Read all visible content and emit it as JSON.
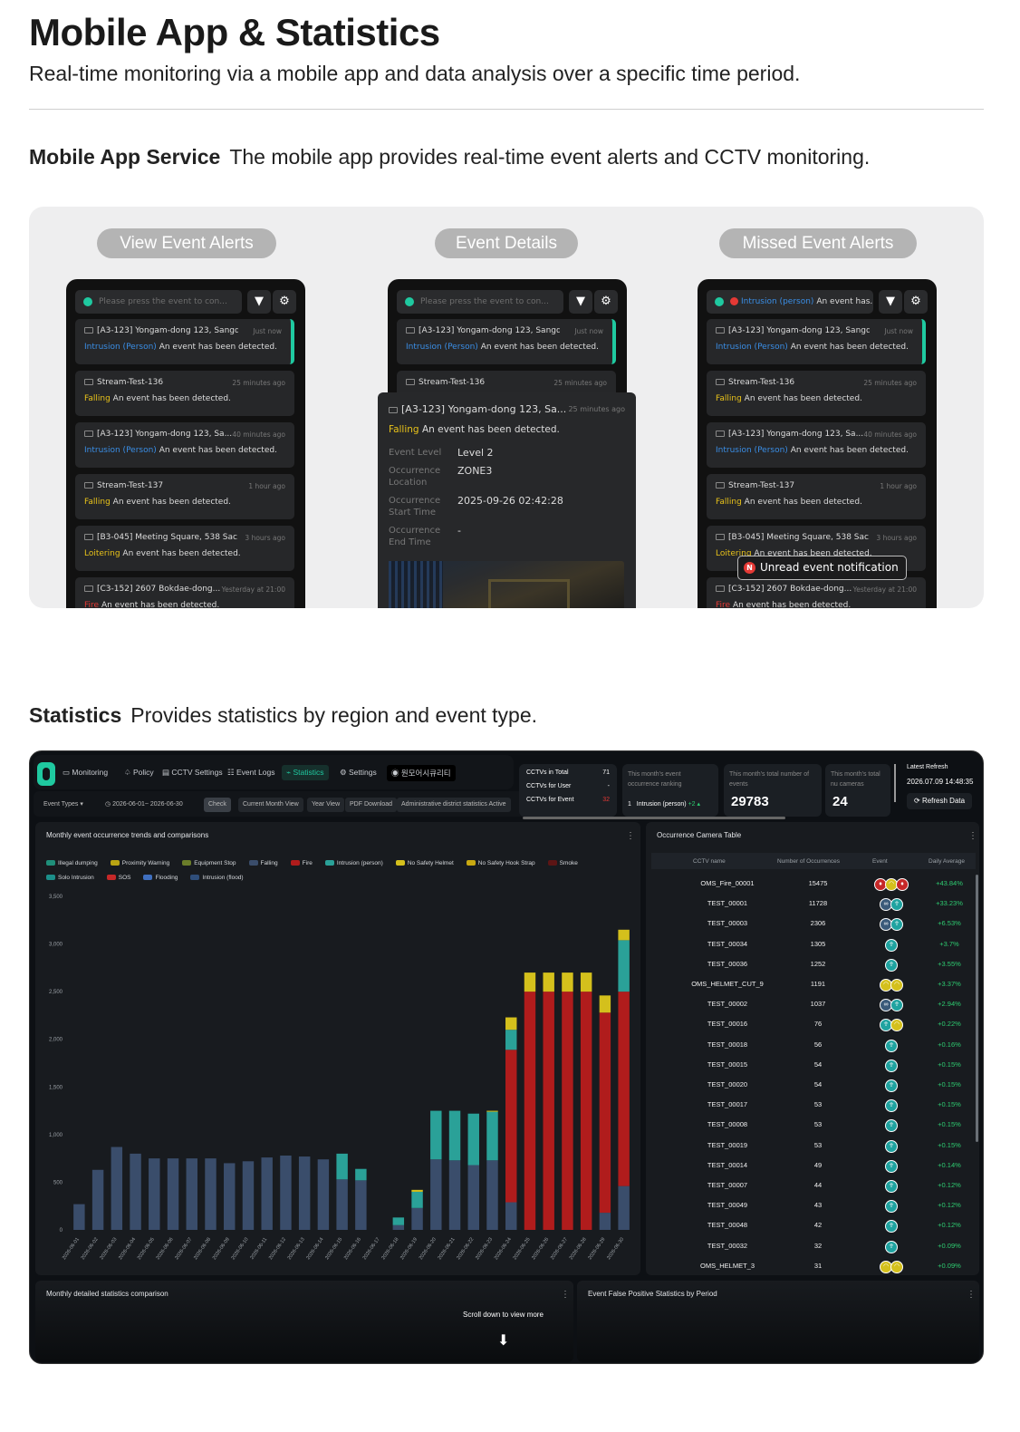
{
  "header": {
    "title": "Mobile App & Statistics",
    "subtitle": "Real-time monitoring via a mobile app and data analysis over a specific time period."
  },
  "mobile_section": {
    "label": "Mobile App Service",
    "desc": "The mobile app provides real-time event alerts and CCTV monitoring.",
    "pills": [
      "View Event Alerts",
      "Event Details",
      "Missed Event Alerts"
    ],
    "search_placeholder": "Please press the event to con...",
    "missed_search_type": "Intrusion (person)",
    "missed_search_rest": "An event has...",
    "events": [
      {
        "title": "[A3-123] Yongam-dong 123, Sangd...",
        "time": "Just now",
        "type": "Intrusion (Person)",
        "color": "c",
        "desc": "An event has been detected."
      },
      {
        "title": "Stream-Test-136",
        "time": "25 minutes ago",
        "type": "Falling",
        "color": "y",
        "desc": "An event has been detected."
      },
      {
        "title": "[A3-123] Yongam-dong 123, Sa...",
        "time": "40 minutes ago",
        "type": "Intrusion (Person)",
        "color": "c",
        "desc": "An event has been detected."
      },
      {
        "title": "Stream-Test-137",
        "time": "1 hour ago",
        "type": "Falling",
        "color": "y",
        "desc": "An event has been detected."
      },
      {
        "title": "[B3-045] Meeting Square, 538 Sac...",
        "time": "3 hours ago",
        "type": "Loitering",
        "color": "y",
        "desc": "An event has been detected."
      },
      {
        "title": "[C3-152] 2607 Bokdae-dong...",
        "time": "Yesterday at 21:00",
        "type": "Fire",
        "color": "r",
        "desc": "An event has been detected."
      }
    ],
    "detail": {
      "title": "[A3-123] Yongam-dong 123, Sa...",
      "time": "25 minutes ago",
      "type": "Falling",
      "desc": "An event has been detected.",
      "fields": [
        {
          "label": "Event Level",
          "value": "Level 2"
        },
        {
          "label": "Occurrence Location",
          "value": "ZONE3"
        },
        {
          "label": "Occurrence Start Time",
          "value": "2025-09-26 02:42:28"
        },
        {
          "label": "Occurrence End Time",
          "value": "-"
        }
      ]
    },
    "notification": "Unread event notification"
  },
  "stats_section": {
    "label": "Statistics",
    "desc": "Provides statistics by region and event type."
  },
  "dashboard": {
    "nav": [
      "Monitoring",
      "Policy",
      "CCTV Settings",
      "Event Logs",
      "Statistics",
      "Settings",
      "원모어시큐리티"
    ],
    "filters": [
      "Event Types",
      "2026-06-01~ 2026-06-30",
      "Check",
      "Current Month View",
      "Year View",
      "PDF Download",
      "Administrative district statistics Active"
    ],
    "cctv_summary": [
      {
        "label": "CCTVs in Total",
        "value": "71"
      },
      {
        "label": "CCTVs for User",
        "value": "-"
      },
      {
        "label": "CCTVs for Event",
        "value": "32"
      }
    ],
    "ranking": {
      "label": "This month's event occurrence ranking",
      "rank": "1",
      "name": "Intrusion (person)",
      "delta": "+2"
    },
    "total_events": {
      "label": "This month's total number of events",
      "value": "29783"
    },
    "total_cameras": {
      "label": "This month's total nu cameras",
      "value": "24"
    },
    "refresh": {
      "label": "Latest Refresh",
      "time": "2026.07.09 14:48:35",
      "button": "Refresh Data"
    },
    "chart_title": "Monthly event occurrence trends and comparisons",
    "table_title": "Occurrence Camera Table",
    "table_headers": [
      "CCTV name",
      "Number of Occurrences",
      "Event",
      "Daily Average"
    ],
    "table_rows": [
      {
        "name": "OMS_Fire_00001",
        "count": "15475",
        "avg": "+43.84%",
        "icons": [
          "r",
          "y",
          "r"
        ]
      },
      {
        "name": "TEST_00001",
        "count": "11728",
        "avg": "+33.23%",
        "icons": [
          "b",
          "t"
        ]
      },
      {
        "name": "TEST_00003",
        "count": "2306",
        "avg": "+6.53%",
        "icons": [
          "b",
          "t"
        ]
      },
      {
        "name": "TEST_00034",
        "count": "1305",
        "avg": "+3.7%",
        "icons": [
          "t"
        ]
      },
      {
        "name": "TEST_00036",
        "count": "1252",
        "avg": "+3.55%",
        "icons": [
          "t"
        ]
      },
      {
        "name": "OMS_HELMET_CUT_9",
        "count": "1191",
        "avg": "+3.37%",
        "icons": [
          "y",
          "y"
        ]
      },
      {
        "name": "TEST_00002",
        "count": "1037",
        "avg": "+2.94%",
        "icons": [
          "b",
          "t"
        ]
      },
      {
        "name": "TEST_00016",
        "count": "76",
        "avg": "+0.22%",
        "icons": [
          "t",
          "y"
        ]
      },
      {
        "name": "TEST_00018",
        "count": "56",
        "avg": "+0.16%",
        "icons": [
          "t"
        ]
      },
      {
        "name": "TEST_00015",
        "count": "54",
        "avg": "+0.15%",
        "icons": [
          "t"
        ]
      },
      {
        "name": "TEST_00020",
        "count": "54",
        "avg": "+0.15%",
        "icons": [
          "t"
        ]
      },
      {
        "name": "TEST_00017",
        "count": "53",
        "avg": "+0.15%",
        "icons": [
          "t"
        ]
      },
      {
        "name": "TEST_00008",
        "count": "53",
        "avg": "+0.15%",
        "icons": [
          "t"
        ]
      },
      {
        "name": "TEST_00019",
        "count": "53",
        "avg": "+0.15%",
        "icons": [
          "t"
        ]
      },
      {
        "name": "TEST_00014",
        "count": "49",
        "avg": "+0.14%",
        "icons": [
          "t"
        ]
      },
      {
        "name": "TEST_00007",
        "count": "44",
        "avg": "+0.12%",
        "icons": [
          "t"
        ]
      },
      {
        "name": "TEST_00049",
        "count": "43",
        "avg": "+0.12%",
        "icons": [
          "t"
        ]
      },
      {
        "name": "TEST_00048",
        "count": "42",
        "avg": "+0.12%",
        "icons": [
          "t"
        ]
      },
      {
        "name": "TEST_00032",
        "count": "32",
        "avg": "+0.09%",
        "icons": [
          "t"
        ]
      },
      {
        "name": "OMS_HELMET_3",
        "count": "31",
        "avg": "+0.09%",
        "icons": [
          "y",
          "y"
        ]
      }
    ],
    "bottom_left_title": "Monthly detailed statistics comparison",
    "bottom_right_title": "Event False Positive Statistics by Period",
    "scroll_hint": "Scroll down to view more"
  },
  "chart_data": {
    "type": "bar",
    "stacked": true,
    "title": "Monthly event occurrence trends and comparisons",
    "ylim": [
      0,
      3500
    ],
    "yticks": [
      0,
      500,
      1000,
      1500,
      2000,
      2500,
      3000,
      3500
    ],
    "categories": [
      "2026-06-01",
      "2026-06-02",
      "2026-06-03",
      "2026-06-04",
      "2026-06-05",
      "2026-06-06",
      "2026-06-07",
      "2026-06-08",
      "2026-06-09",
      "2026-06-10",
      "2026-06-11",
      "2026-06-12",
      "2026-06-13",
      "2026-06-14",
      "2026-06-15",
      "2026-06-16",
      "2026-06-17",
      "2026-06-18",
      "2026-06-19",
      "2026-06-20",
      "2026-06-21",
      "2026-06-22",
      "2026-06-23",
      "2026-06-24",
      "2026-06-25",
      "2026-06-26",
      "2026-06-27",
      "2026-06-28",
      "2026-06-29",
      "2026-06-30"
    ],
    "legend_position": "top",
    "series": [
      {
        "name": "Illegal dumping",
        "color": "#1f8f7a",
        "values": [
          0,
          0,
          0,
          0,
          0,
          0,
          0,
          0,
          0,
          0,
          0,
          0,
          0,
          0,
          0,
          0,
          0,
          0,
          0,
          0,
          0,
          0,
          0,
          0,
          0,
          0,
          0,
          0,
          0,
          0
        ]
      },
      {
        "name": "Proximity Warning",
        "color": "#b9a413",
        "values": [
          0,
          0,
          0,
          0,
          0,
          0,
          0,
          0,
          0,
          0,
          0,
          0,
          0,
          0,
          0,
          0,
          0,
          0,
          0,
          0,
          0,
          0,
          0,
          0,
          0,
          0,
          0,
          0,
          0,
          0
        ]
      },
      {
        "name": "Equipment Stop",
        "color": "#6b7d2a",
        "values": [
          0,
          0,
          0,
          0,
          0,
          0,
          0,
          0,
          0,
          0,
          0,
          0,
          0,
          0,
          0,
          0,
          0,
          0,
          0,
          0,
          0,
          0,
          0,
          0,
          0,
          0,
          0,
          0,
          0,
          0
        ]
      },
      {
        "name": "Falling",
        "color": "#3a4d6b",
        "values": [
          270,
          630,
          870,
          800,
          750,
          750,
          750,
          750,
          700,
          720,
          760,
          780,
          770,
          740,
          530,
          520,
          0,
          50,
          230,
          740,
          730,
          680,
          730,
          290,
          0,
          0,
          0,
          0,
          180,
          460
        ]
      },
      {
        "name": "Fire",
        "color": "#b01c1c",
        "values": [
          0,
          0,
          0,
          0,
          0,
          0,
          0,
          0,
          0,
          0,
          0,
          0,
          0,
          0,
          0,
          0,
          0,
          0,
          0,
          0,
          0,
          0,
          0,
          1600,
          2500,
          2500,
          2500,
          2500,
          2100,
          2040
        ]
      },
      {
        "name": "Intrusion (person)",
        "color": "#2aa198",
        "values": [
          0,
          0,
          0,
          0,
          0,
          0,
          0,
          0,
          0,
          0,
          0,
          0,
          0,
          0,
          270,
          120,
          0,
          80,
          170,
          510,
          520,
          540,
          510,
          210,
          0,
          0,
          0,
          0,
          0,
          540
        ]
      },
      {
        "name": "No Safety Helmet",
        "color": "#d4c01c",
        "values": [
          0,
          0,
          0,
          0,
          0,
          0,
          0,
          0,
          0,
          0,
          0,
          0,
          0,
          0,
          0,
          0,
          0,
          0,
          20,
          0,
          0,
          0,
          10,
          130,
          200,
          200,
          200,
          200,
          180,
          110
        ]
      },
      {
        "name": "No Safety Hook Strap",
        "color": "#c9a911",
        "values": [
          0,
          0,
          0,
          0,
          0,
          0,
          0,
          0,
          0,
          0,
          0,
          0,
          0,
          0,
          0,
          0,
          0,
          0,
          0,
          0,
          0,
          0,
          0,
          0,
          0,
          0,
          0,
          0,
          0,
          0
        ]
      },
      {
        "name": "Smoke",
        "color": "#5c1515",
        "values": [
          0,
          0,
          0,
          0,
          0,
          0,
          0,
          0,
          0,
          0,
          0,
          0,
          0,
          0,
          0,
          0,
          0,
          0,
          0,
          0,
          0,
          0,
          0,
          0,
          0,
          0,
          0,
          0,
          0,
          0
        ]
      },
      {
        "name": "Solo Intrusion",
        "color": "#1c8f8a",
        "values": [
          0,
          0,
          0,
          0,
          0,
          0,
          0,
          0,
          0,
          0,
          0,
          0,
          0,
          0,
          0,
          0,
          0,
          0,
          0,
          0,
          0,
          0,
          0,
          0,
          0,
          0,
          0,
          0,
          0,
          0
        ]
      },
      {
        "name": "SOS",
        "color": "#c62828",
        "values": [
          0,
          0,
          0,
          0,
          0,
          0,
          0,
          0,
          0,
          0,
          0,
          0,
          0,
          0,
          0,
          0,
          0,
          0,
          0,
          0,
          0,
          0,
          0,
          0,
          0,
          0,
          0,
          0,
          0,
          0
        ]
      },
      {
        "name": "Flooding",
        "color": "#3f6fbf",
        "values": [
          0,
          0,
          0,
          0,
          0,
          0,
          0,
          0,
          0,
          0,
          0,
          0,
          0,
          0,
          0,
          0,
          0,
          0,
          0,
          0,
          0,
          0,
          0,
          0,
          0,
          0,
          0,
          0,
          0,
          0
        ]
      },
      {
        "name": "Intrusion (flood)",
        "color": "#2f4e7a",
        "values": [
          0,
          0,
          0,
          0,
          0,
          0,
          0,
          0,
          0,
          0,
          0,
          0,
          0,
          0,
          0,
          0,
          0,
          0,
          0,
          0,
          0,
          0,
          0,
          0,
          0,
          0,
          0,
          0,
          0,
          0
        ]
      }
    ]
  }
}
